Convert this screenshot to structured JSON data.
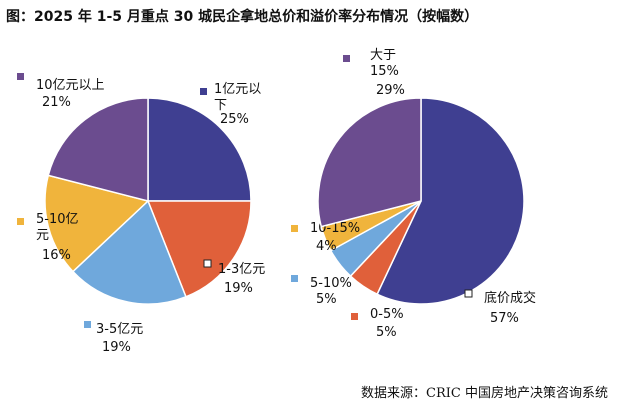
{
  "title": "图：2025 年 1-5 月重点 30 城民企拿地总价和溢价率分布情况（按幅数）",
  "source": "数据来源：CRIC 中国房地产决策咨询系统",
  "chart_data": [
    {
      "type": "pie",
      "slices": [
        {
          "name": "1亿元以下",
          "value": 25,
          "pct": "25%",
          "color": "#3f3f91",
          "label_lines": [
            "1亿元以",
            "下"
          ]
        },
        {
          "name": "1-3亿元",
          "value": 19,
          "pct": "19%",
          "color": "#e0603a",
          "label_lines": [
            "1-3亿元"
          ]
        },
        {
          "name": "3-5亿元",
          "value": 19,
          "pct": "19%",
          "color": "#6fa8dc",
          "label_lines": [
            "3-5亿元"
          ]
        },
        {
          "name": "5-10亿元",
          "value": 16,
          "pct": "16%",
          "color": "#f0b43c",
          "label_lines": [
            "5-10亿",
            "元"
          ]
        },
        {
          "name": "10亿元以上",
          "value": 21,
          "pct": "21%",
          "color": "#6b4c8f",
          "label_lines": [
            "10亿元以上"
          ]
        }
      ]
    },
    {
      "type": "pie",
      "slices": [
        {
          "name": "底价成交",
          "value": 57,
          "pct": "57%",
          "color": "#3f3f91",
          "label_lines": [
            "底价成交"
          ]
        },
        {
          "name": "0-5%",
          "value": 5,
          "pct": "5%",
          "color": "#e0603a",
          "label_lines": [
            "0-5%"
          ]
        },
        {
          "name": "5-10%",
          "value": 5,
          "pct": "5%",
          "color": "#6fa8dc",
          "label_lines": [
            "5-10%"
          ]
        },
        {
          "name": "10-15%",
          "value": 4,
          "pct": "4%",
          "color": "#f0b43c",
          "label_lines": [
            "10-15%"
          ]
        },
        {
          "name": "大于15%",
          "value": 29,
          "pct": "29%",
          "color": "#6b4c8f",
          "label_lines": [
            "大于",
            "15%"
          ]
        }
      ]
    }
  ]
}
